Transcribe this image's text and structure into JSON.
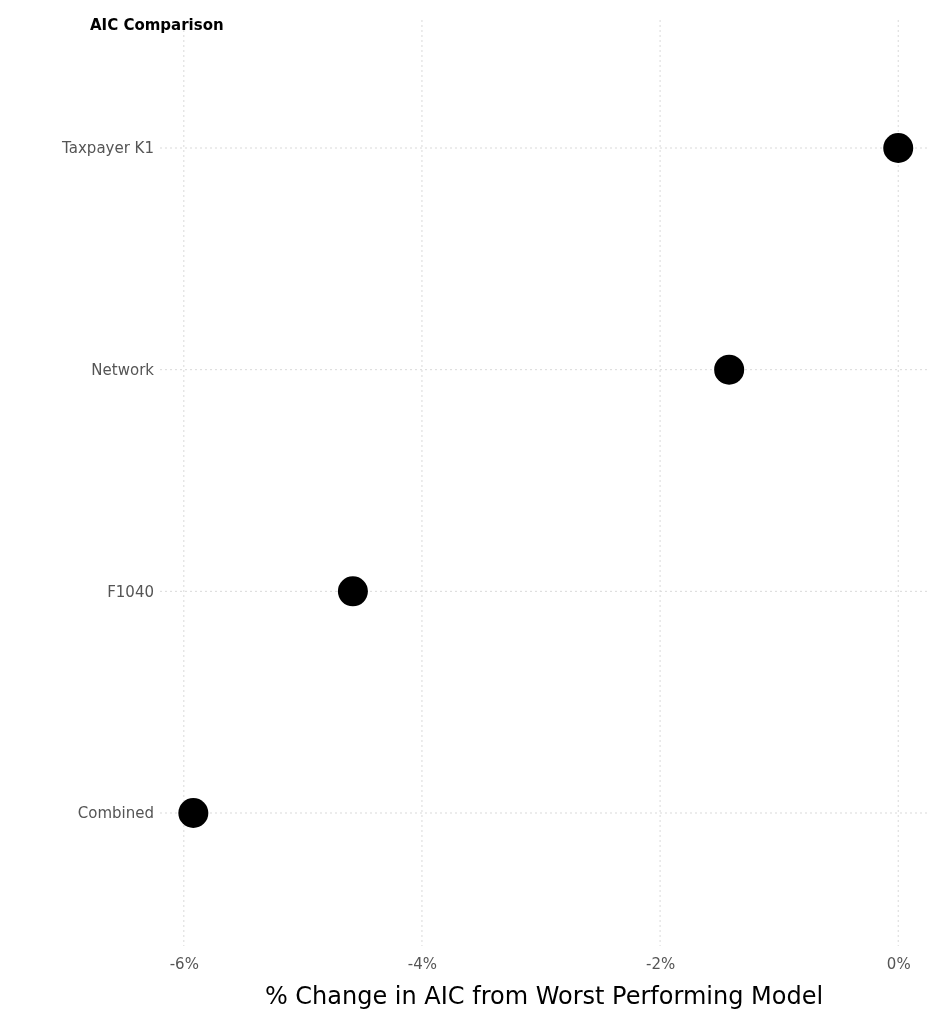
{
  "chart_data": {
    "type": "scatter",
    "orientation": "horizontal",
    "title": "AIC Comparison",
    "xlabel": "% Change in AIC from Worst Performing Model",
    "categories": [
      "Taxpayer K1",
      "Network",
      "F1040",
      "Combined"
    ],
    "series": [
      {
        "color": "#000000",
        "values": [
          0,
          -1.42,
          -4.58,
          -5.92
        ]
      }
    ],
    "xlim": [
      -6.2,
      0.25
    ],
    "xticks": [
      {
        "value": -6,
        "label": "-6%"
      },
      {
        "value": -4,
        "label": "-4%"
      },
      {
        "value": -2,
        "label": "-2%"
      },
      {
        "value": 0,
        "label": "0%"
      }
    ],
    "grid": true,
    "marker": "circle"
  }
}
